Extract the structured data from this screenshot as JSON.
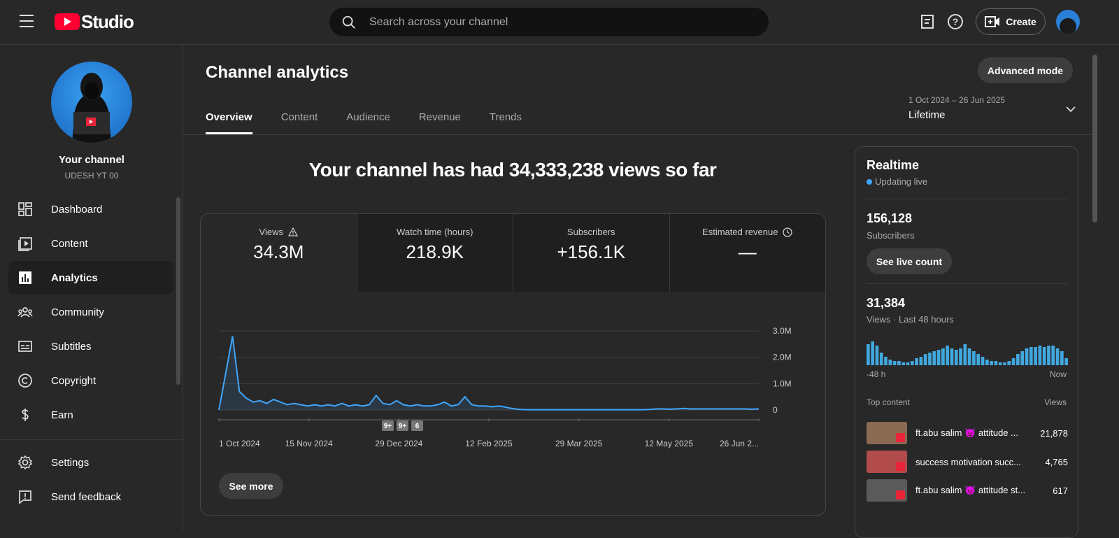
{
  "header": {
    "logo_text": "Studio",
    "search_placeholder": "Search across your channel",
    "create_label": "Create"
  },
  "sidebar": {
    "channel_name": "Your channel",
    "channel_handle": "UDESH YT 00",
    "items": [
      {
        "label": "Dashboard",
        "icon": "dashboard-icon"
      },
      {
        "label": "Content",
        "icon": "content-icon"
      },
      {
        "label": "Analytics",
        "icon": "analytics-icon",
        "active": true
      },
      {
        "label": "Community",
        "icon": "community-icon"
      },
      {
        "label": "Subtitles",
        "icon": "subtitles-icon"
      },
      {
        "label": "Copyright",
        "icon": "copyright-icon"
      },
      {
        "label": "Earn",
        "icon": "earn-icon"
      }
    ],
    "bottom_items": [
      {
        "label": "Settings",
        "icon": "settings-icon"
      },
      {
        "label": "Send feedback",
        "icon": "feedback-icon"
      }
    ]
  },
  "main": {
    "title": "Channel analytics",
    "advanced_mode_label": "Advanced mode",
    "tabs": [
      "Overview",
      "Content",
      "Audience",
      "Revenue",
      "Trends"
    ],
    "active_tab": "Overview",
    "date_range": {
      "sub": "1 Oct 2024 – 26 Jun 2025",
      "main": "Lifetime"
    },
    "headline": "Your channel has had 34,333,238 views so far",
    "metrics": [
      {
        "label": "Views",
        "value": "34.3M",
        "icon": "warning-icon"
      },
      {
        "label": "Watch time (hours)",
        "value": "218.9K"
      },
      {
        "label": "Subscribers",
        "value": "+156.1K"
      },
      {
        "label": "Estimated revenue",
        "value": "—",
        "icon": "clock-icon"
      }
    ],
    "see_more_label": "See more"
  },
  "chart_data": {
    "type": "line",
    "x_ticks": [
      "1 Oct 2024",
      "15 Nov 2024",
      "29 Dec 2024",
      "12 Feb 2025",
      "29 Mar 2025",
      "12 May 2025",
      "26 Jun 2..."
    ],
    "y_ticks": [
      "3.0M",
      "2.0M",
      "1.0M",
      "0"
    ],
    "ylim": [
      0,
      3000000
    ],
    "series": [
      {
        "values": [
          0,
          1400000,
          2800000,
          700000,
          450000,
          300000,
          350000,
          250000,
          400000,
          300000,
          200000,
          250000,
          200000,
          150000,
          200000,
          150000,
          200000,
          150000,
          250000,
          150000,
          200000,
          150000,
          200000,
          550000,
          250000,
          200000,
          350000,
          200000,
          150000,
          200000,
          150000,
          150000,
          200000,
          300000,
          150000,
          200000,
          500000,
          200000,
          150000,
          150000,
          120000,
          150000,
          100000,
          50000,
          20000,
          10000,
          10000,
          10000,
          10000,
          10000,
          10000,
          10000,
          10000,
          10000,
          10000,
          10000,
          10000,
          10000,
          10000,
          10000,
          10000,
          10000,
          10000,
          20000,
          40000,
          40000,
          30000,
          40000,
          60000,
          40000,
          40000,
          40000,
          40000,
          40000,
          40000,
          40000,
          40000,
          40000,
          30000,
          40000
        ]
      }
    ],
    "line_color": "#3ea6ff",
    "markers": [
      "9+",
      "9+",
      "6"
    ]
  },
  "realtime": {
    "title": "Realtime",
    "status": "Updating live",
    "subscribers": "156,128",
    "subscribers_label": "Subscribers",
    "live_count_label": "See live count",
    "views": "31,384",
    "views_label": "Views · Last 48 hours",
    "bars": [
      0.75,
      0.85,
      0.7,
      0.45,
      0.3,
      0.2,
      0.15,
      0.15,
      0.1,
      0.1,
      0.15,
      0.25,
      0.3,
      0.4,
      0.45,
      0.5,
      0.55,
      0.6,
      0.7,
      0.6,
      0.55,
      0.6,
      0.75,
      0.6,
      0.5,
      0.4,
      0.3,
      0.2,
      0.15,
      0.15,
      0.1,
      0.1,
      0.15,
      0.25,
      0.4,
      0.5,
      0.6,
      0.65,
      0.65,
      0.7,
      0.65,
      0.7,
      0.7,
      0.6,
      0.5,
      0.25
    ],
    "axis_start": "-48 h",
    "axis_end": "Now",
    "top_content_label": "Top content",
    "views_col_label": "Views",
    "top_content": [
      {
        "title": "ft.abu salim 👿 attitude ...",
        "views": "21,878",
        "thumb": "#8a6a52"
      },
      {
        "title": "success motivation succ...",
        "views": "4,765",
        "thumb": "#b24b4b"
      },
      {
        "title": "ft.abu salim 👿 attitude st...",
        "views": "617",
        "thumb": "#5a5a5a"
      }
    ]
  }
}
